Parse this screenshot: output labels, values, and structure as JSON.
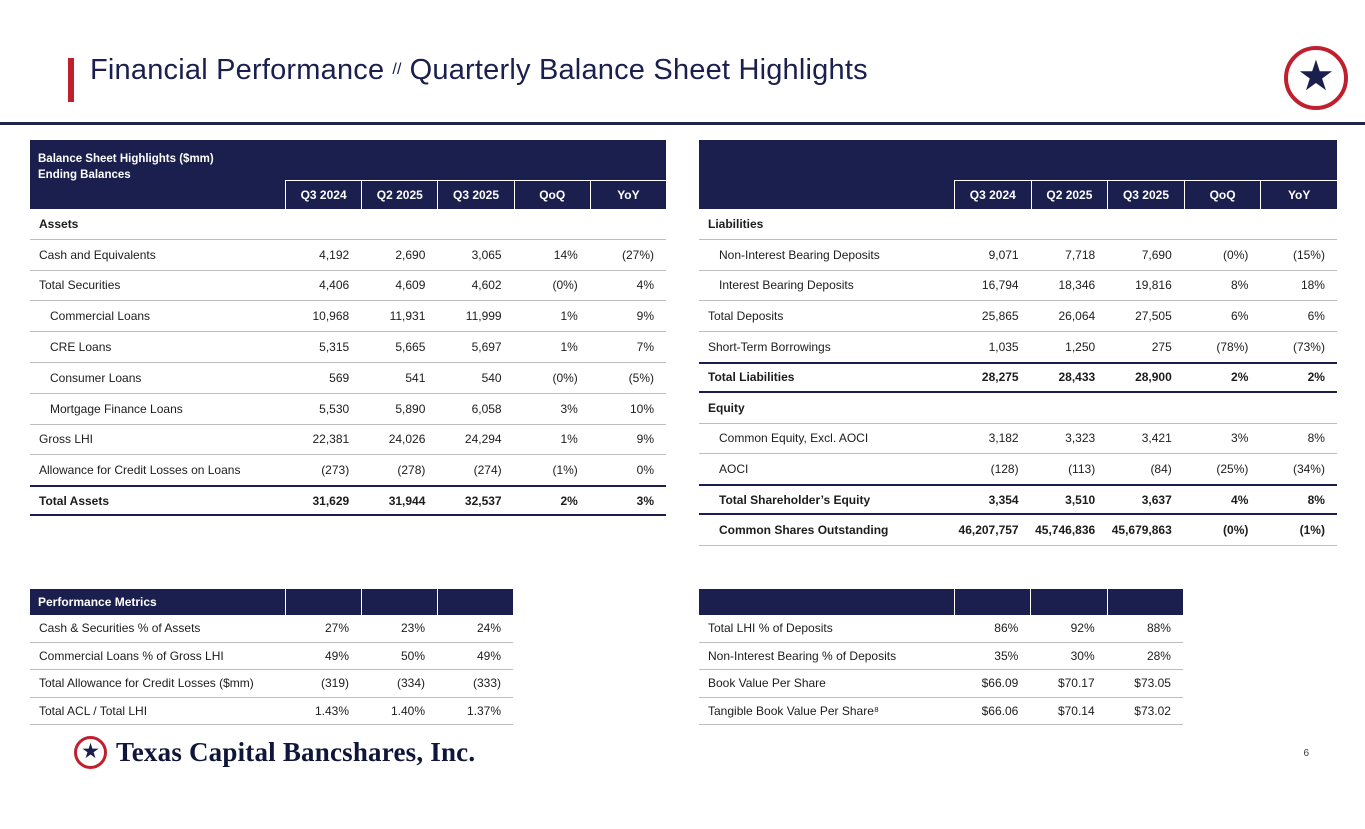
{
  "page": {
    "title_main": "Financial Performance",
    "title_sep": "//",
    "title_sub": "Quarterly Balance Sheet Highlights",
    "page_number": "6",
    "footer_brand": "Texas Capital Bancshares, Inc."
  },
  "icons": {
    "star_logo": "★"
  },
  "colors": {
    "navy": "#1a1f4e",
    "red": "#c0202e",
    "rule": "#20244a",
    "row_border": "#bdbdbd"
  },
  "tables": {
    "balance_left": {
      "title_line1": "Balance Sheet Highlights ($mm)",
      "title_line2": "Ending Balances",
      "columns": [
        "Q3 2024",
        "Q2 2025",
        "Q3 2025",
        "QoQ",
        "YoY"
      ],
      "rows": [
        {
          "label": "Assets",
          "bold": true,
          "section": true,
          "values": []
        },
        {
          "label": "Cash and Equivalents",
          "values": [
            "4,192",
            "2,690",
            "3,065",
            "14%",
            "(27%)"
          ]
        },
        {
          "label": "Total Securities",
          "values": [
            "4,406",
            "4,609",
            "4,602",
            "(0%)",
            "4%"
          ]
        },
        {
          "label": "Commercial Loans",
          "indent": true,
          "values": [
            "10,968",
            "11,931",
            "11,999",
            "1%",
            "9%"
          ]
        },
        {
          "label": "CRE Loans",
          "indent": true,
          "values": [
            "5,315",
            "5,665",
            "5,697",
            "1%",
            "7%"
          ]
        },
        {
          "label": "Consumer Loans",
          "indent": true,
          "values": [
            "569",
            "541",
            "540",
            "(0%)",
            "(5%)"
          ]
        },
        {
          "label": "Mortgage Finance Loans",
          "indent": true,
          "values": [
            "5,530",
            "5,890",
            "6,058",
            "3%",
            "10%"
          ]
        },
        {
          "label": "Gross LHI",
          "values": [
            "22,381",
            "24,026",
            "24,294",
            "1%",
            "9%"
          ]
        },
        {
          "label": "Allowance for Credit Losses on Loans",
          "values": [
            "(273)",
            "(278)",
            "(274)",
            "(1%)",
            "0%"
          ]
        },
        {
          "label": "Total Assets",
          "bold": true,
          "heavy": true,
          "values": [
            "31,629",
            "31,944",
            "32,537",
            "2%",
            "3%"
          ]
        }
      ]
    },
    "balance_right": {
      "title_line1": "",
      "title_line2": "",
      "columns": [
        "Q3 2024",
        "Q2 2025",
        "Q3 2025",
        "QoQ",
        "YoY"
      ],
      "rows": [
        {
          "label": "Liabilities",
          "bold": true,
          "section": true,
          "values": []
        },
        {
          "label": "Non-Interest Bearing Deposits",
          "indent": true,
          "values": [
            "9,071",
            "7,718",
            "7,690",
            "(0%)",
            "(15%)"
          ]
        },
        {
          "label": "Interest Bearing Deposits",
          "indent": true,
          "values": [
            "16,794",
            "18,346",
            "19,816",
            "8%",
            "18%"
          ]
        },
        {
          "label": "Total Deposits",
          "values": [
            "25,865",
            "26,064",
            "27,505",
            "6%",
            "6%"
          ]
        },
        {
          "label": "Short-Term Borrowings",
          "values": [
            "1,035",
            "1,250",
            "275",
            "(78%)",
            "(73%)"
          ]
        },
        {
          "label": "Total Liabilities",
          "bold": true,
          "heavy": true,
          "values": [
            "28,275",
            "28,433",
            "28,900",
            "2%",
            "2%"
          ]
        },
        {
          "label": "Equity",
          "bold": true,
          "section": true,
          "values": []
        },
        {
          "label": "Common Equity, Excl. AOCI",
          "indent": true,
          "values": [
            "3,182",
            "3,323",
            "3,421",
            "3%",
            "8%"
          ]
        },
        {
          "label": "AOCI",
          "indent": true,
          "values": [
            "(128)",
            "(113)",
            "(84)",
            "(25%)",
            "(34%)"
          ]
        },
        {
          "label": "Total Shareholder’s Equity",
          "indent": true,
          "bold": true,
          "heavy": true,
          "values": [
            "3,354",
            "3,510",
            "3,637",
            "4%",
            "8%"
          ]
        },
        {
          "label": "Common Shares Outstanding",
          "indent": true,
          "bold": true,
          "values": [
            "46,207,757",
            "45,746,836",
            "45,679,863",
            "(0%)",
            "(1%)"
          ]
        }
      ]
    },
    "metrics_left": {
      "title": "Performance Metrics",
      "columns": [
        "",
        "",
        ""
      ],
      "rows": [
        {
          "label": "Cash & Securities % of Assets",
          "values": [
            "27%",
            "23%",
            "24%"
          ]
        },
        {
          "label": "Commercial Loans % of Gross LHI",
          "values": [
            "49%",
            "50%",
            "49%"
          ]
        },
        {
          "label": "Total Allowance for Credit Losses ($mm)",
          "values": [
            "(319)",
            "(334)",
            "(333)"
          ]
        },
        {
          "label": "Total ACL / Total LHI",
          "values": [
            "1.43%",
            "1.40%",
            "1.37%"
          ]
        }
      ]
    },
    "metrics_right": {
      "title": "",
      "columns": [
        "",
        "",
        ""
      ],
      "rows": [
        {
          "label": "Total LHI % of Deposits",
          "values": [
            "86%",
            "92%",
            "88%"
          ]
        },
        {
          "label": "Non-Interest Bearing % of Deposits",
          "values": [
            "35%",
            "30%",
            "28%"
          ]
        },
        {
          "label": "Book Value Per Share",
          "values": [
            "$66.09",
            "$70.17",
            "$73.05"
          ]
        },
        {
          "label": "Tangible Book Value Per Share⁸",
          "values": [
            "$66.06",
            "$70.14",
            "$73.02"
          ]
        }
      ]
    }
  }
}
